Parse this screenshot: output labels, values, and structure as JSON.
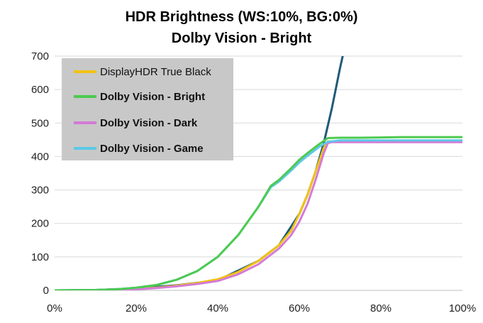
{
  "chart_data": {
    "type": "line",
    "title": "HDR Brightness (WS:10%, BG:0%)",
    "subtitle": "Dolby Vision - Bright",
    "xlabel": "",
    "ylabel": "",
    "xlim": [
      0,
      100
    ],
    "ylim": [
      0,
      700
    ],
    "x_ticks": [
      "0%",
      "20%",
      "40%",
      "60%",
      "80%",
      "100%"
    ],
    "y_ticks": [
      "0",
      "100",
      "200",
      "300",
      "400",
      "500",
      "600",
      "700"
    ],
    "grid": true,
    "legend_position": "top-left",
    "reference_curve": {
      "color": "#1f5a78",
      "x": [
        0,
        10,
        20,
        30,
        40,
        50,
        55,
        60,
        62,
        64,
        66,
        68,
        70,
        71
      ],
      "y": [
        0,
        1,
        6,
        15,
        30,
        88,
        135,
        228,
        285,
        355,
        440,
        545,
        665,
        720
      ]
    },
    "series": [
      {
        "name": "DisplayHDR True Black",
        "color": "#f2c211",
        "x": [
          0,
          10,
          15,
          20,
          25,
          30,
          35,
          40,
          45,
          50,
          55,
          58,
          60,
          62,
          64,
          66,
          67,
          68,
          70,
          80,
          90,
          100
        ],
        "y": [
          0,
          0,
          1,
          4,
          8,
          14,
          22,
          33,
          55,
          88,
          135,
          178,
          228,
          285,
          355,
          425,
          445,
          445,
          445,
          445,
          445,
          445
        ]
      },
      {
        "name": "Dolby Vision - Bright",
        "color": "#4dca50",
        "x": [
          0,
          10,
          15,
          20,
          25,
          30,
          35,
          40,
          45,
          50,
          53,
          55,
          58,
          60,
          62,
          65,
          67,
          70,
          75,
          80,
          85,
          90,
          95,
          100
        ],
        "y": [
          0,
          1,
          3,
          8,
          16,
          32,
          58,
          100,
          165,
          250,
          312,
          330,
          365,
          390,
          410,
          438,
          455,
          456,
          456,
          457,
          458,
          458,
          458,
          458
        ]
      },
      {
        "name": "Dolby Vision - Dark",
        "color": "#d47ad6",
        "x": [
          0,
          10,
          15,
          20,
          25,
          30,
          35,
          40,
          45,
          50,
          55,
          58,
          60,
          62,
          64,
          66,
          67,
          68,
          70,
          80,
          90,
          100
        ],
        "y": [
          0,
          0,
          1,
          3,
          7,
          12,
          19,
          28,
          48,
          78,
          125,
          165,
          205,
          258,
          330,
          410,
          440,
          443,
          443,
          443,
          443,
          443
        ]
      },
      {
        "name": "Dolby Vision - Game",
        "color": "#5dc8e6",
        "x": [
          0,
          10,
          15,
          20,
          25,
          30,
          35,
          40,
          45,
          50,
          53,
          55,
          58,
          60,
          62,
          65,
          67,
          70,
          75,
          80,
          85,
          90,
          95,
          100
        ],
        "y": [
          0,
          1,
          3,
          8,
          16,
          32,
          58,
          100,
          165,
          250,
          308,
          325,
          358,
          382,
          402,
          430,
          444,
          448,
          448,
          448,
          448,
          448,
          448,
          448
        ]
      }
    ]
  }
}
